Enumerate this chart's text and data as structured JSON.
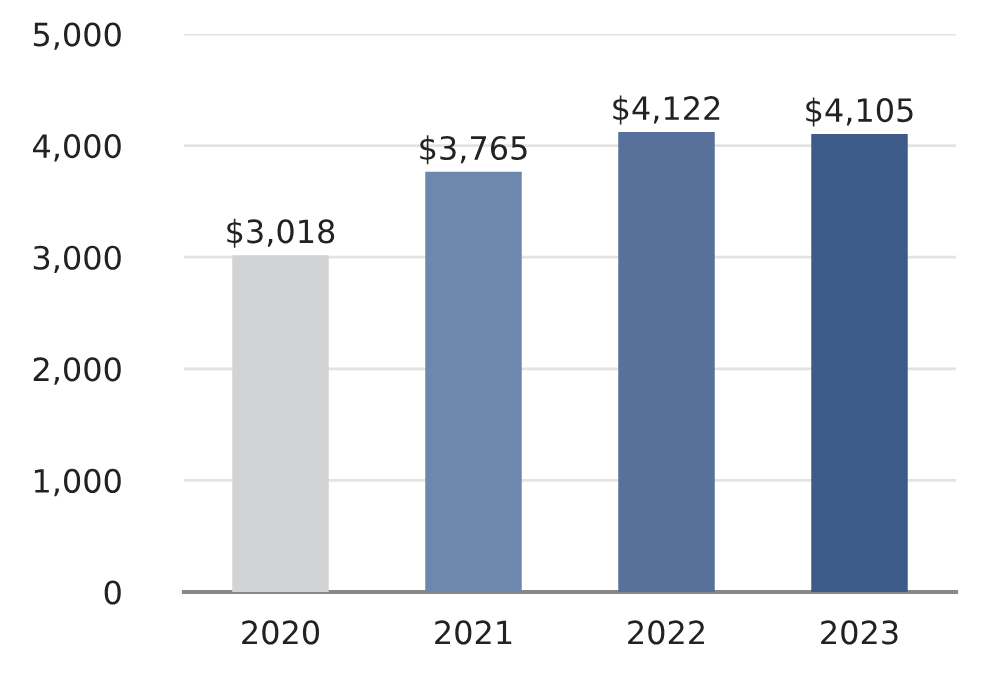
{
  "chart_data": {
    "type": "bar",
    "categories": [
      "2020",
      "2021",
      "2022",
      "2023"
    ],
    "values": [
      3018,
      3765,
      4122,
      4105
    ],
    "colors": [
      "#d1d3d4",
      "#6e88ad",
      "#57719b",
      "#3d5b89"
    ],
    "value_labels": [
      "$3,018",
      "$3,765",
      "$4,122",
      "$4,105"
    ],
    "ylim": [
      0,
      5000
    ],
    "yticks": [
      {
        "value": 0,
        "label": "0"
      },
      {
        "value": 1000,
        "label": "1,000"
      },
      {
        "value": 2000,
        "label": "2,000"
      },
      {
        "value": 3000,
        "label": "3,000"
      },
      {
        "value": 4000,
        "label": "4,000"
      },
      {
        "value": 5000,
        "label": "5,000"
      }
    ],
    "grid": "y",
    "legend": false
  }
}
